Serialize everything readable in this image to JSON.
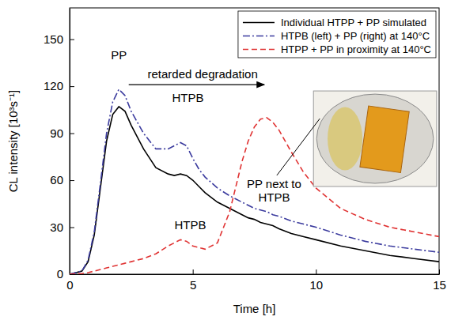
{
  "chart_data": {
    "type": "line",
    "x_label": "Time [h]",
    "y_label": "CL intensity [10³s⁻¹]",
    "x": [
      0,
      0.5,
      0.75,
      1,
      1.25,
      1.5,
      1.75,
      2,
      2.25,
      2.5,
      3,
      3.5,
      4,
      4.25,
      4.5,
      4.75,
      5,
      5.25,
      5.5,
      6,
      6.5,
      7,
      7.25,
      7.5,
      7.75,
      8,
      8.25,
      8.5,
      9,
      9.5,
      10,
      11,
      12,
      13,
      14,
      15
    ],
    "xlim": [
      0,
      15
    ],
    "xticks": [
      0,
      5,
      10,
      15
    ],
    "ylim": [
      0,
      170
    ],
    "yticks": [
      0,
      30,
      60,
      90,
      120,
      150
    ],
    "legend": "upper right",
    "series": [
      {
        "name": "Individual HTPP + PP simulated",
        "color": "#000000",
        "line_style": "solid",
        "values": [
          0,
          2,
          8,
          25,
          55,
          85,
          102,
          107,
          104,
          95,
          80,
          68,
          64,
          63,
          64,
          63,
          60,
          56,
          52,
          46,
          42,
          38,
          36,
          35,
          33,
          32,
          31,
          29,
          26,
          24,
          22,
          18,
          15,
          12,
          10,
          8
        ]
      },
      {
        "name": "HTPB (left) + PP (right) at 140°C",
        "color": "#3b3b9e",
        "line_style": "dashdot",
        "values": [
          0,
          2,
          9,
          27,
          58,
          90,
          110,
          118,
          114,
          104,
          90,
          80,
          80,
          82,
          84,
          82,
          74,
          67,
          62,
          55,
          50,
          46,
          44,
          42,
          41,
          40,
          38,
          37,
          34,
          32,
          30,
          25,
          21,
          18,
          16,
          14
        ]
      },
      {
        "name": "HTPP + PP in proximity at 140°C",
        "color": "#e03434",
        "line_style": "dashed",
        "values": [
          0,
          0.5,
          1,
          2,
          3,
          4,
          5,
          6,
          7,
          8,
          10,
          13,
          18,
          20,
          22,
          21,
          18,
          17,
          16,
          20,
          40,
          72,
          85,
          94,
          99,
          100,
          97,
          92,
          78,
          65,
          55,
          42,
          35,
          30,
          27,
          24
        ]
      }
    ],
    "annotations": [
      "PP",
      "retarded degradation",
      "HTPB",
      "HTPB",
      "PP next to HTPB"
    ]
  }
}
